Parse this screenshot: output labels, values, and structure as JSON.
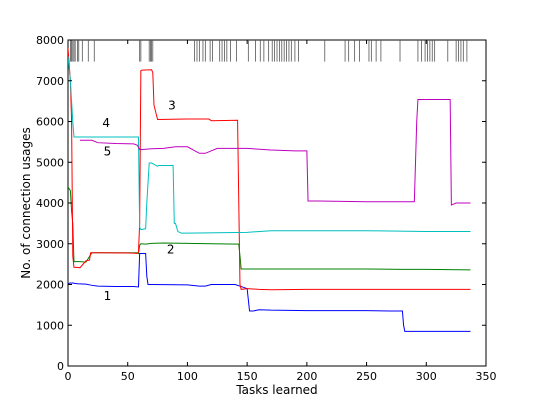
{
  "chart_data": {
    "type": "line",
    "xlabel": "Tasks learned",
    "ylabel": "No. of connection usages",
    "xlim": [
      0,
      350
    ],
    "ylim": [
      0,
      8000
    ],
    "xticks": [
      "0",
      "50",
      "100",
      "150",
      "200",
      "250",
      "300",
      "350"
    ],
    "yticks": [
      "0",
      "1000",
      "2000",
      "3000",
      "4000",
      "5000",
      "6000",
      "7000",
      "8000"
    ],
    "grid": false,
    "legend": "none",
    "event_marks_x": [
      2,
      3,
      4,
      5,
      6,
      8,
      9,
      12,
      17,
      22,
      60,
      61,
      68,
      69,
      70,
      71,
      106,
      108,
      110,
      113,
      115,
      119,
      121,
      127,
      129,
      131,
      133,
      136,
      141,
      151,
      157,
      161,
      164,
      168,
      171,
      173,
      175,
      177,
      179,
      181,
      183,
      185,
      187,
      190,
      193,
      215,
      232,
      235,
      240,
      244,
      252,
      254,
      258,
      262,
      278,
      293,
      296,
      299,
      301,
      303,
      305,
      307,
      318,
      325,
      327,
      329,
      331,
      334
    ],
    "series": [
      {
        "label": "1",
        "color": "#0000ff",
        "x": [
          0,
          1,
          2,
          3,
          4,
          5,
          8,
          15,
          20,
          25,
          40,
          55,
          59,
          60,
          65,
          66,
          67,
          70,
          100,
          110,
          115,
          120,
          125,
          140,
          145,
          150,
          152,
          155,
          160,
          170,
          200,
          250,
          270,
          280,
          281,
          282,
          337
        ],
        "y": [
          2000,
          2030,
          2040,
          2030,
          2040,
          2030,
          2020,
          2010,
          1980,
          1960,
          1950,
          1950,
          1940,
          2760,
          2760,
          2200,
          2000,
          2000,
          1990,
          1960,
          1960,
          2000,
          2000,
          2000,
          1950,
          1900,
          1350,
          1350,
          1380,
          1370,
          1360,
          1360,
          1350,
          1350,
          1000,
          850,
          850
        ]
      },
      {
        "label": "2",
        "color": "#008000",
        "x": [
          0,
          2,
          3,
          4,
          5,
          10,
          15,
          20,
          25,
          55,
          58,
          59,
          60,
          61,
          65,
          70,
          80,
          100,
          120,
          143,
          144,
          145,
          146,
          170,
          200,
          250,
          280,
          300,
          337
        ],
        "y": [
          4400,
          4300,
          3800,
          3500,
          2560,
          2560,
          2550,
          2780,
          2780,
          2780,
          2780,
          2760,
          2960,
          3000,
          2990,
          3010,
          3020,
          3010,
          3000,
          2990,
          2700,
          2380,
          2380,
          2380,
          2380,
          2380,
          2370,
          2370,
          2360
        ]
      },
      {
        "label": "3",
        "color": "#ff0000",
        "x": [
          0,
          1,
          2,
          3,
          4,
          5,
          8,
          10,
          15,
          18,
          19,
          25,
          55,
          58,
          59,
          60,
          61,
          62,
          70,
          71,
          72,
          75,
          100,
          118,
          120,
          142,
          143,
          144,
          145,
          150,
          160,
          170,
          200,
          250,
          300,
          337
        ],
        "y": [
          7800,
          7400,
          7000,
          6000,
          2700,
          2420,
          2420,
          2410,
          2580,
          2600,
          2780,
          2780,
          2770,
          2760,
          2790,
          3500,
          7250,
          7260,
          7270,
          7200,
          6400,
          6050,
          6060,
          6060,
          6020,
          6030,
          4000,
          2000,
          1880,
          1900,
          1880,
          1870,
          1880,
          1880,
          1880,
          1880
        ]
      },
      {
        "label": "4",
        "color": "#00bfbf",
        "x": [
          0,
          2,
          3,
          4,
          5,
          10,
          58,
          59,
          60,
          61,
          62,
          65,
          66,
          68,
          70,
          75,
          76,
          80,
          88,
          89,
          90,
          92,
          95,
          100,
          150,
          170,
          200,
          250,
          300,
          337
        ],
        "y": [
          7600,
          7000,
          6500,
          6000,
          5620,
          5620,
          5620,
          5620,
          3400,
          3350,
          3350,
          3370,
          4000,
          4980,
          4980,
          4900,
          4920,
          4920,
          4920,
          3500,
          3500,
          3300,
          3260,
          3260,
          3280,
          3320,
          3320,
          3320,
          3300,
          3300
        ]
      },
      {
        "label": "5",
        "color": "#bf00bf",
        "x": [
          10,
          20,
          25,
          40,
          55,
          58,
          60,
          65,
          70,
          80,
          90,
          100,
          110,
          115,
          125,
          130,
          140,
          150,
          170,
          190,
          200,
          201,
          210,
          250,
          290,
          292,
          293,
          320,
          321,
          325,
          337
        ],
        "y": [
          5540,
          5540,
          5480,
          5460,
          5450,
          5420,
          5310,
          5320,
          5330,
          5340,
          5380,
          5380,
          5220,
          5220,
          5340,
          5340,
          5340,
          5340,
          5300,
          5280,
          5280,
          4050,
          4050,
          4030,
          4030,
          6000,
          6540,
          6540,
          3950,
          4000,
          4000
        ]
      }
    ],
    "annotations": [
      {
        "text": "1",
        "x": 33,
        "y": 1620
      },
      {
        "text": "2",
        "x": 86,
        "y": 2760
      },
      {
        "text": "3",
        "x": 87,
        "y": 6300
      },
      {
        "text": "4",
        "x": 32,
        "y": 5860
      },
      {
        "text": "5",
        "x": 33,
        "y": 5160
      }
    ]
  }
}
